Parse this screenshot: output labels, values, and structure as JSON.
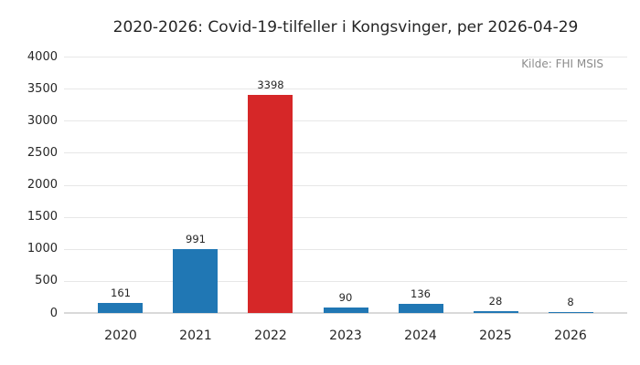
{
  "title": "2020-2026: Covid-19-tilfeller i Kongsvinger, per 2026-04-29",
  "source": "Kilde: FHI MSIS",
  "colors": {
    "bar": "#2077b4",
    "highlight_bar": "#d62728",
    "grid": "#e7e7e7",
    "baseline": "#d9d9d9",
    "text": "#262626",
    "muted_text": "#8c8c8c",
    "background": "#ffffff"
  },
  "chart_data": {
    "type": "bar",
    "title": "2020-2026: Covid-19-tilfeller i Kongsvinger, per 2026-04-29",
    "annotation": "Kilde: FHI MSIS",
    "categories": [
      "2020",
      "2021",
      "2022",
      "2023",
      "2024",
      "2025",
      "2026"
    ],
    "values": [
      161,
      991,
      3398,
      90,
      136,
      28,
      8
    ],
    "highlight_index": 2,
    "xlabel": "",
    "ylabel": "",
    "ylim": [
      0,
      4000
    ],
    "yticks": [
      0,
      500,
      1000,
      1500,
      2000,
      2500,
      3000,
      3500,
      4000
    ],
    "grid": true,
    "legend": "none",
    "value_labels": true
  }
}
